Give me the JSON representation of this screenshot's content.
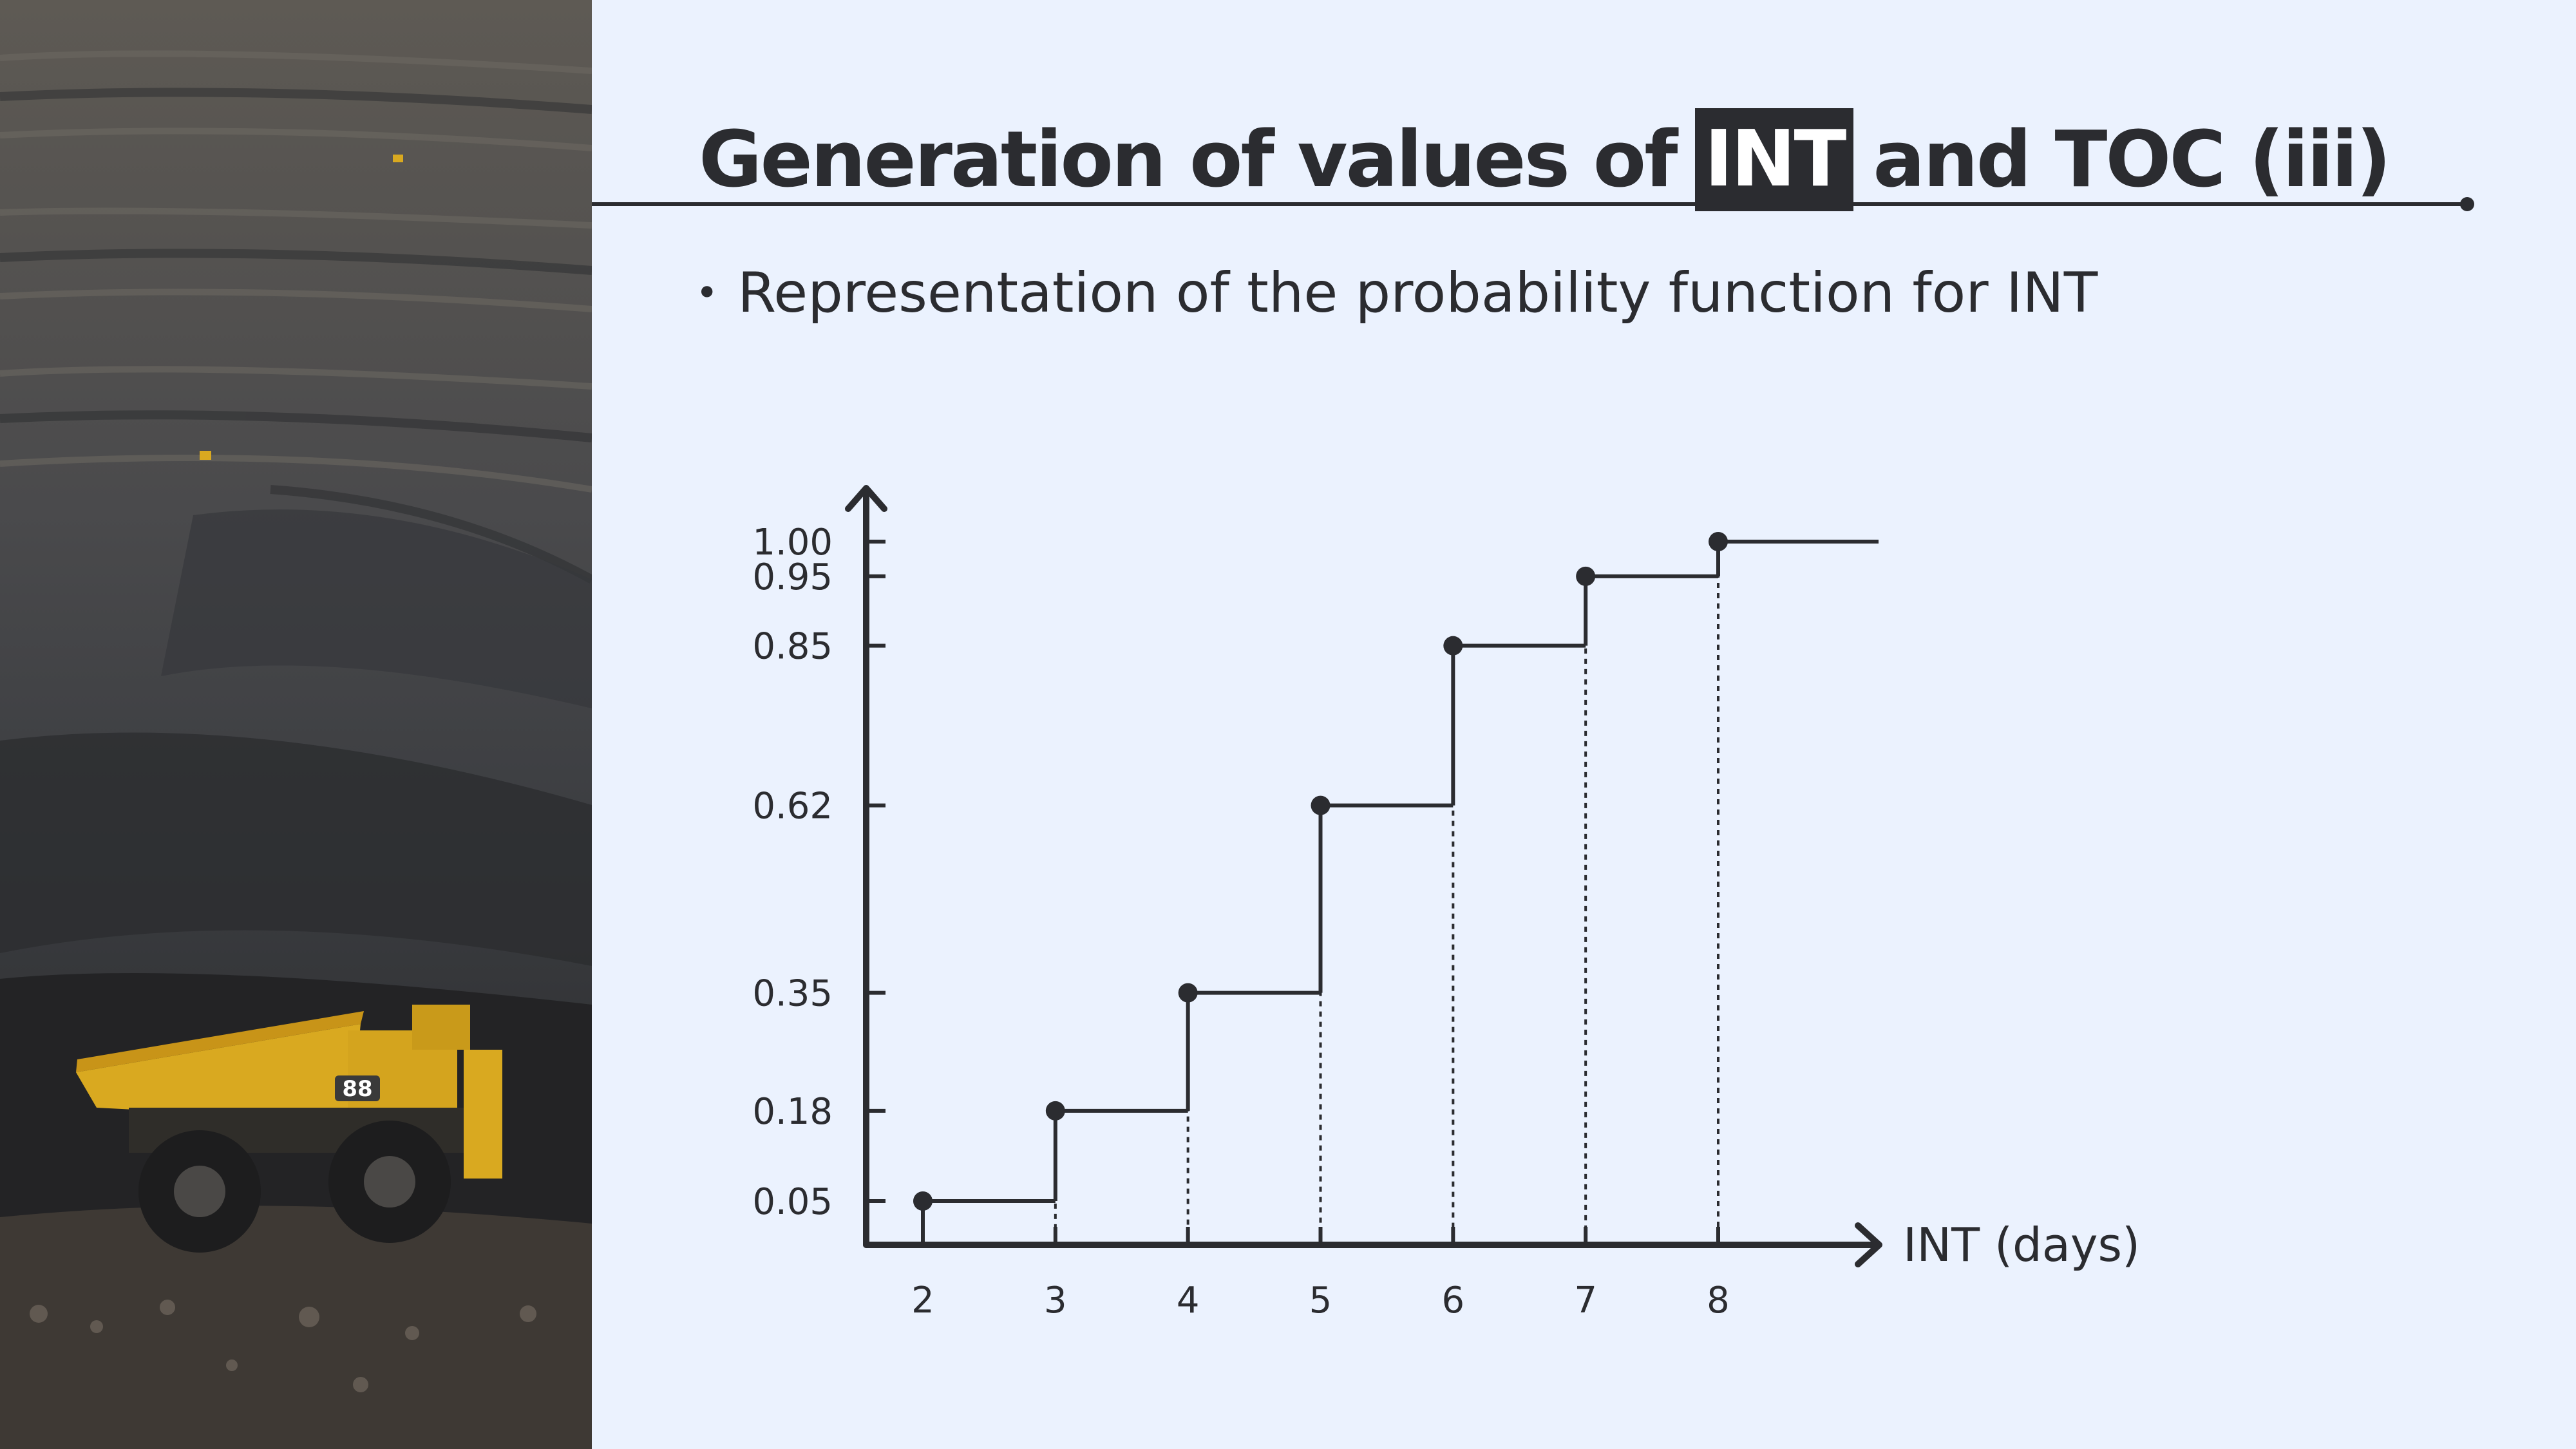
{
  "slide": {
    "title_before": "Generation of values of",
    "title_highlight": "INT",
    "title_after": "and TOC (iii)",
    "bullet": "Representation of the probability function for INT"
  },
  "photo": {
    "description_icon": "mining-truck-photo",
    "truck_number": "88"
  },
  "colors": {
    "background": "#ebf2fe",
    "ink": "#2b2c30",
    "highlight_text": "#ffffff",
    "truck_yellow": "#d9a920"
  },
  "chart_data": {
    "type": "line",
    "subtype": "step-cumulative",
    "xlabel": "INT (days)",
    "ylabel": "",
    "x_ticks": [
      2,
      3,
      4,
      5,
      6,
      7,
      8
    ],
    "y_ticks": [
      0.05,
      0.18,
      0.35,
      0.62,
      0.85,
      0.95,
      1.0
    ],
    "y_tick_labels": [
      "0.05",
      "0.18",
      "0.35",
      "0.62",
      "0.85",
      "0.95",
      "1.00"
    ],
    "series": [
      {
        "x": [
          2,
          3,
          4,
          5,
          6,
          7,
          8
        ],
        "y": [
          0.05,
          0.18,
          0.35,
          0.62,
          0.85,
          0.95,
          1.0
        ]
      }
    ],
    "xlim": [
      1.6,
      9.2
    ],
    "ylim": [
      0,
      1.05
    ],
    "dashed_drop_lines": true,
    "grid": false
  }
}
